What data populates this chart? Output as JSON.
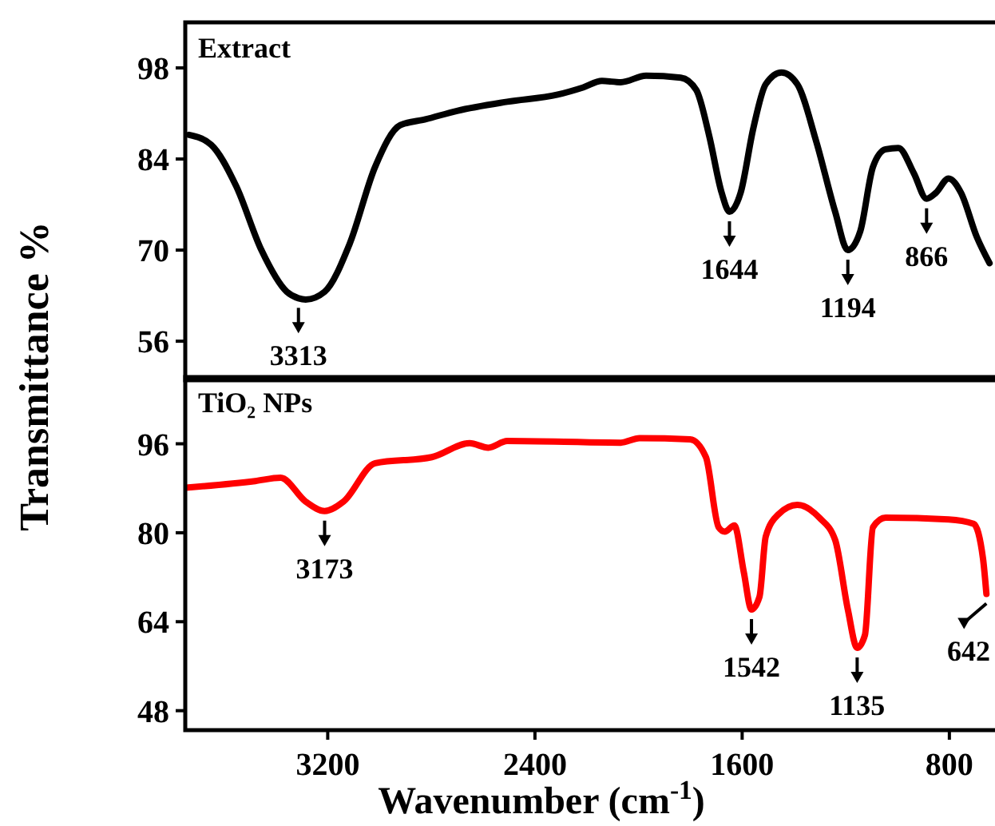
{
  "chart_data": [
    {
      "type": "line",
      "title": "Extract",
      "ylabel": "Transmittance %",
      "xlim": [
        3750,
        630
      ],
      "ylim": [
        50,
        105
      ],
      "yticks": [
        56,
        70,
        84,
        98
      ],
      "tick_labels": "y",
      "grid": false,
      "marker": "none",
      "line_style": "solid",
      "series": [
        {
          "color": "#000000",
          "x": [
            3735,
            3650,
            3553,
            3456,
            3358,
            3313,
            3285,
            3212,
            3115,
            3017,
            2920,
            2823,
            2701,
            2507,
            2312,
            2214,
            2141,
            2069,
            1971,
            1837,
            1777,
            1728,
            1679,
            1649,
            1606,
            1557,
            1509,
            1448,
            1387,
            1314,
            1241,
            1192,
            1144,
            1095,
            1046,
            997,
            937,
            888,
            852,
            803,
            755,
            694,
            645
          ],
          "values": [
            87.7,
            86.2,
            79.8,
            70,
            63.6,
            62.6,
            62.4,
            63.6,
            71,
            82.8,
            89.2,
            90.1,
            91.4,
            92.8,
            93.9,
            95,
            96,
            95.8,
            96.8,
            96.5,
            94.6,
            87.7,
            78.8,
            75.9,
            78.8,
            88.7,
            95.5,
            97.3,
            95.5,
            86.7,
            75.9,
            70,
            72.9,
            82.8,
            85.5,
            85.7,
            81.8,
            77.9,
            78.8,
            81,
            78.8,
            72,
            68
          ]
        }
      ],
      "annotations": [
        {
          "text": "3313",
          "x": 3313,
          "y": 62.6
        },
        {
          "text": "1644",
          "x": 1649,
          "y": 75.9
        },
        {
          "text": "1194",
          "x": 1192,
          "y": 70
        },
        {
          "text": "866",
          "x": 888,
          "y": 77.9
        }
      ]
    },
    {
      "type": "line",
      "title": "TiO₂ NPs",
      "xlabel": "Wavenumber (cm$^{-1}$)",
      "xlim": [
        3750,
        630
      ],
      "xticks": [
        3200,
        2400,
        1600,
        800
      ],
      "ylim": [
        44.5,
        108
      ],
      "yticks": [
        48,
        64,
        80,
        96
      ],
      "grid": false,
      "marker": "none",
      "line_style": "solid",
      "series": [
        {
          "color": "#ff0000",
          "x": [
            3748,
            3480,
            3382,
            3285,
            3212,
            3139,
            3017,
            2798,
            2652,
            2580,
            2507,
            2069,
            1996,
            1801,
            1740,
            1691,
            1667,
            1630,
            1594,
            1564,
            1533,
            1509,
            1460,
            1387,
            1302,
            1241,
            1192,
            1156,
            1126,
            1095,
            1046,
            803,
            706,
            670,
            657
          ],
          "values": [
            88.1,
            89.3,
            89.9,
            85.6,
            83.9,
            85.6,
            92.5,
            93.6,
            96.1,
            95.3,
            96.5,
            96.2,
            97,
            96.8,
            93.6,
            81,
            80.2,
            81.3,
            73,
            66.2,
            68.5,
            79.3,
            83.3,
            85,
            82.7,
            78.7,
            66.2,
            59.3,
            61.6,
            81,
            82.7,
            82.4,
            81.6,
            75.3,
            69
          ]
        }
      ],
      "annotations": [
        {
          "text": "3173",
          "x": 3212,
          "y": 83.9
        },
        {
          "text": "1542",
          "x": 1564,
          "y": 66.2
        },
        {
          "text": "1135",
          "x": 1156,
          "y": 59.3
        },
        {
          "text": "642",
          "x": 657,
          "y": 69
        }
      ]
    }
  ]
}
